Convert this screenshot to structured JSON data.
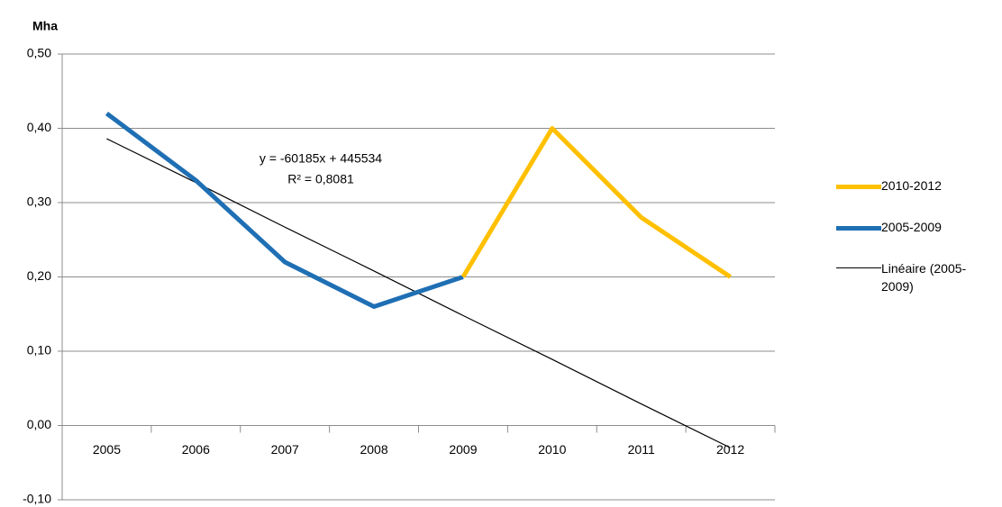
{
  "chart_data": {
    "type": "line",
    "y_axis_label": "Mha",
    "categories": [
      "2005",
      "2006",
      "2007",
      "2008",
      "2009",
      "2010",
      "2011",
      "2012"
    ],
    "series": [
      {
        "name": "2010-2012",
        "color": "#ffc000",
        "values": [
          null,
          null,
          null,
          null,
          0.2,
          0.4,
          0.28,
          0.2
        ]
      },
      {
        "name": "2005-2009",
        "color": "#1f6fb4",
        "values": [
          0.42,
          0.33,
          0.22,
          0.16,
          0.2,
          null,
          null,
          null
        ]
      },
      {
        "name": "Linéaire (2005-2009)",
        "color": "#000000",
        "values": [
          0.386,
          0.327,
          0.267,
          0.208,
          0.148,
          0.089,
          0.029,
          -0.03
        ]
      }
    ],
    "annotations": [
      "y = -60185x + 445534",
      "R² = 0,8081"
    ],
    "ylim": [
      -0.1,
      0.5
    ],
    "yticks": [
      {
        "value": -0.1,
        "label": "-0,10"
      },
      {
        "value": 0.0,
        "label": "0,00"
      },
      {
        "value": 0.1,
        "label": "0,10"
      },
      {
        "value": 0.2,
        "label": "0,20"
      },
      {
        "value": 0.3,
        "label": "0,30"
      },
      {
        "value": 0.4,
        "label": "0,40"
      },
      {
        "value": 0.5,
        "label": "0,50"
      }
    ],
    "grid": true,
    "legend": "right"
  }
}
